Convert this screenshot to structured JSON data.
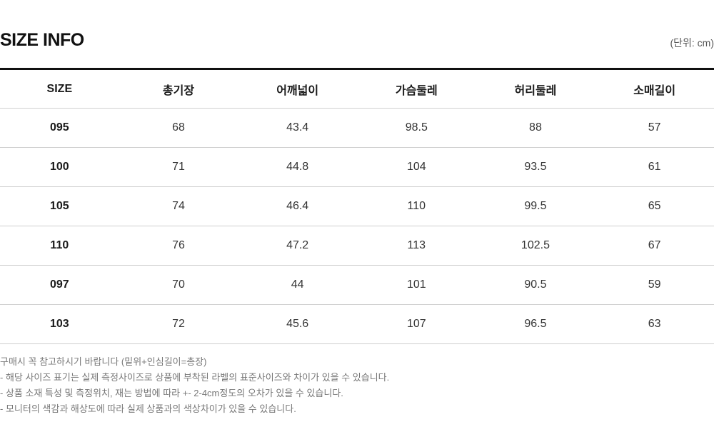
{
  "title": "SIZE INFO",
  "unit": "(단위: cm)",
  "table": {
    "headers": [
      "SIZE",
      "총기장",
      "어깨넓이",
      "가슴둘레",
      "허리둘레",
      "소매길이"
    ],
    "rows": [
      [
        "095",
        "68",
        "43.4",
        "98.5",
        "88",
        "57"
      ],
      [
        "100",
        "71",
        "44.8",
        "104",
        "93.5",
        "61"
      ],
      [
        "105",
        "74",
        "46.4",
        "110",
        "99.5",
        "65"
      ],
      [
        "110",
        "76",
        "47.2",
        "113",
        "102.5",
        "67"
      ],
      [
        "097",
        "70",
        "44",
        "101",
        "90.5",
        "59"
      ],
      [
        "103",
        "72",
        "45.6",
        "107",
        "96.5",
        "63"
      ]
    ]
  },
  "notes": [
    "구매시 꼭 참고하시기 바랍니다 (밑위+인심길이=총장)",
    "- 해당 사이즈 표기는 실제 측정사이즈로 상품에 부착된 라벨의 표준사이즈와 차이가 있을 수 있습니다.",
    "- 상품 소재 특성 및 측정위치, 재는 방법에 따라 +- 2-4cm정도의 오차가 있을 수 있습니다.",
    "- 모니터의 색감과 해상도에 따라 실제 상품과의 색상차이가 있을 수 있습니다."
  ]
}
